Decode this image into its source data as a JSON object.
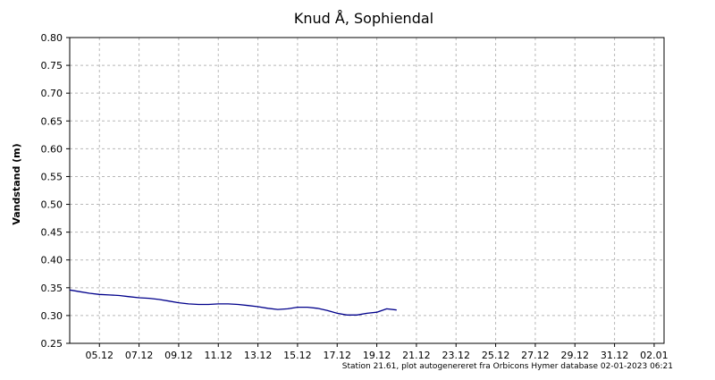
{
  "chart_data": {
    "type": "line",
    "title": "Knud Å, Sophiendal",
    "ylabel": "Vandstand (m)",
    "xlabel": "",
    "ylim": [
      0.25,
      0.8
    ],
    "yticks": [
      "0.25",
      "0.30",
      "0.35",
      "0.40",
      "0.45",
      "0.50",
      "0.55",
      "0.60",
      "0.65",
      "0.70",
      "0.75",
      "0.80"
    ],
    "xlim": [
      "2022-12-03T12:00",
      "2023-01-02T12:00"
    ],
    "xticks": [
      {
        "date": "2022-12-05",
        "label": "05.12"
      },
      {
        "date": "2022-12-07",
        "label": "07.12"
      },
      {
        "date": "2022-12-09",
        "label": "09.12"
      },
      {
        "date": "2022-12-11",
        "label": "11.12"
      },
      {
        "date": "2022-12-13",
        "label": "13.12"
      },
      {
        "date": "2022-12-15",
        "label": "15.12"
      },
      {
        "date": "2022-12-17",
        "label": "17.12"
      },
      {
        "date": "2022-12-19",
        "label": "19.12"
      },
      {
        "date": "2022-12-21",
        "label": "21.12"
      },
      {
        "date": "2022-12-23",
        "label": "23.12"
      },
      {
        "date": "2022-12-25",
        "label": "25.12"
      },
      {
        "date": "2022-12-27",
        "label": "27.12"
      },
      {
        "date": "2022-12-29",
        "label": "29.12"
      },
      {
        "date": "2022-12-31",
        "label": "31.12"
      },
      {
        "date": "2023-01-02",
        "label": "02.01"
      }
    ],
    "grid": true,
    "line_color": "#00008b",
    "series": [
      {
        "x": [
          "2022-12-03T12:00",
          "2022-12-04T00:00",
          "2022-12-04T12:00",
          "2022-12-05T00:00",
          "2022-12-05T12:00",
          "2022-12-06T00:00",
          "2022-12-06T12:00",
          "2022-12-07T00:00",
          "2022-12-07T12:00",
          "2022-12-08T00:00",
          "2022-12-08T12:00",
          "2022-12-09T00:00",
          "2022-12-09T12:00",
          "2022-12-10T00:00",
          "2022-12-10T12:00",
          "2022-12-11T00:00",
          "2022-12-11T12:00",
          "2022-12-12T00:00",
          "2022-12-12T12:00",
          "2022-12-13T00:00",
          "2022-12-13T12:00",
          "2022-12-14T00:00",
          "2022-12-14T12:00",
          "2022-12-15T00:00",
          "2022-12-15T12:00",
          "2022-12-16T00:00",
          "2022-12-16T12:00",
          "2022-12-17T00:00",
          "2022-12-17T12:00",
          "2022-12-18T00:00",
          "2022-12-18T12:00",
          "2022-12-19T00:00",
          "2022-12-19T12:00",
          "2022-12-20T00:00"
        ],
        "y": [
          0.346,
          0.343,
          0.34,
          0.338,
          0.337,
          0.336,
          0.334,
          0.332,
          0.331,
          0.329,
          0.326,
          0.323,
          0.321,
          0.32,
          0.32,
          0.321,
          0.321,
          0.32,
          0.318,
          0.316,
          0.313,
          0.311,
          0.312,
          0.315,
          0.315,
          0.313,
          0.309,
          0.304,
          0.301,
          0.301,
          0.304,
          0.306,
          0.312,
          0.31
        ]
      }
    ]
  },
  "footer": "Station 21.61, plot autogenereret fra Orbicons Hymer database 02-01-2023 06:21"
}
